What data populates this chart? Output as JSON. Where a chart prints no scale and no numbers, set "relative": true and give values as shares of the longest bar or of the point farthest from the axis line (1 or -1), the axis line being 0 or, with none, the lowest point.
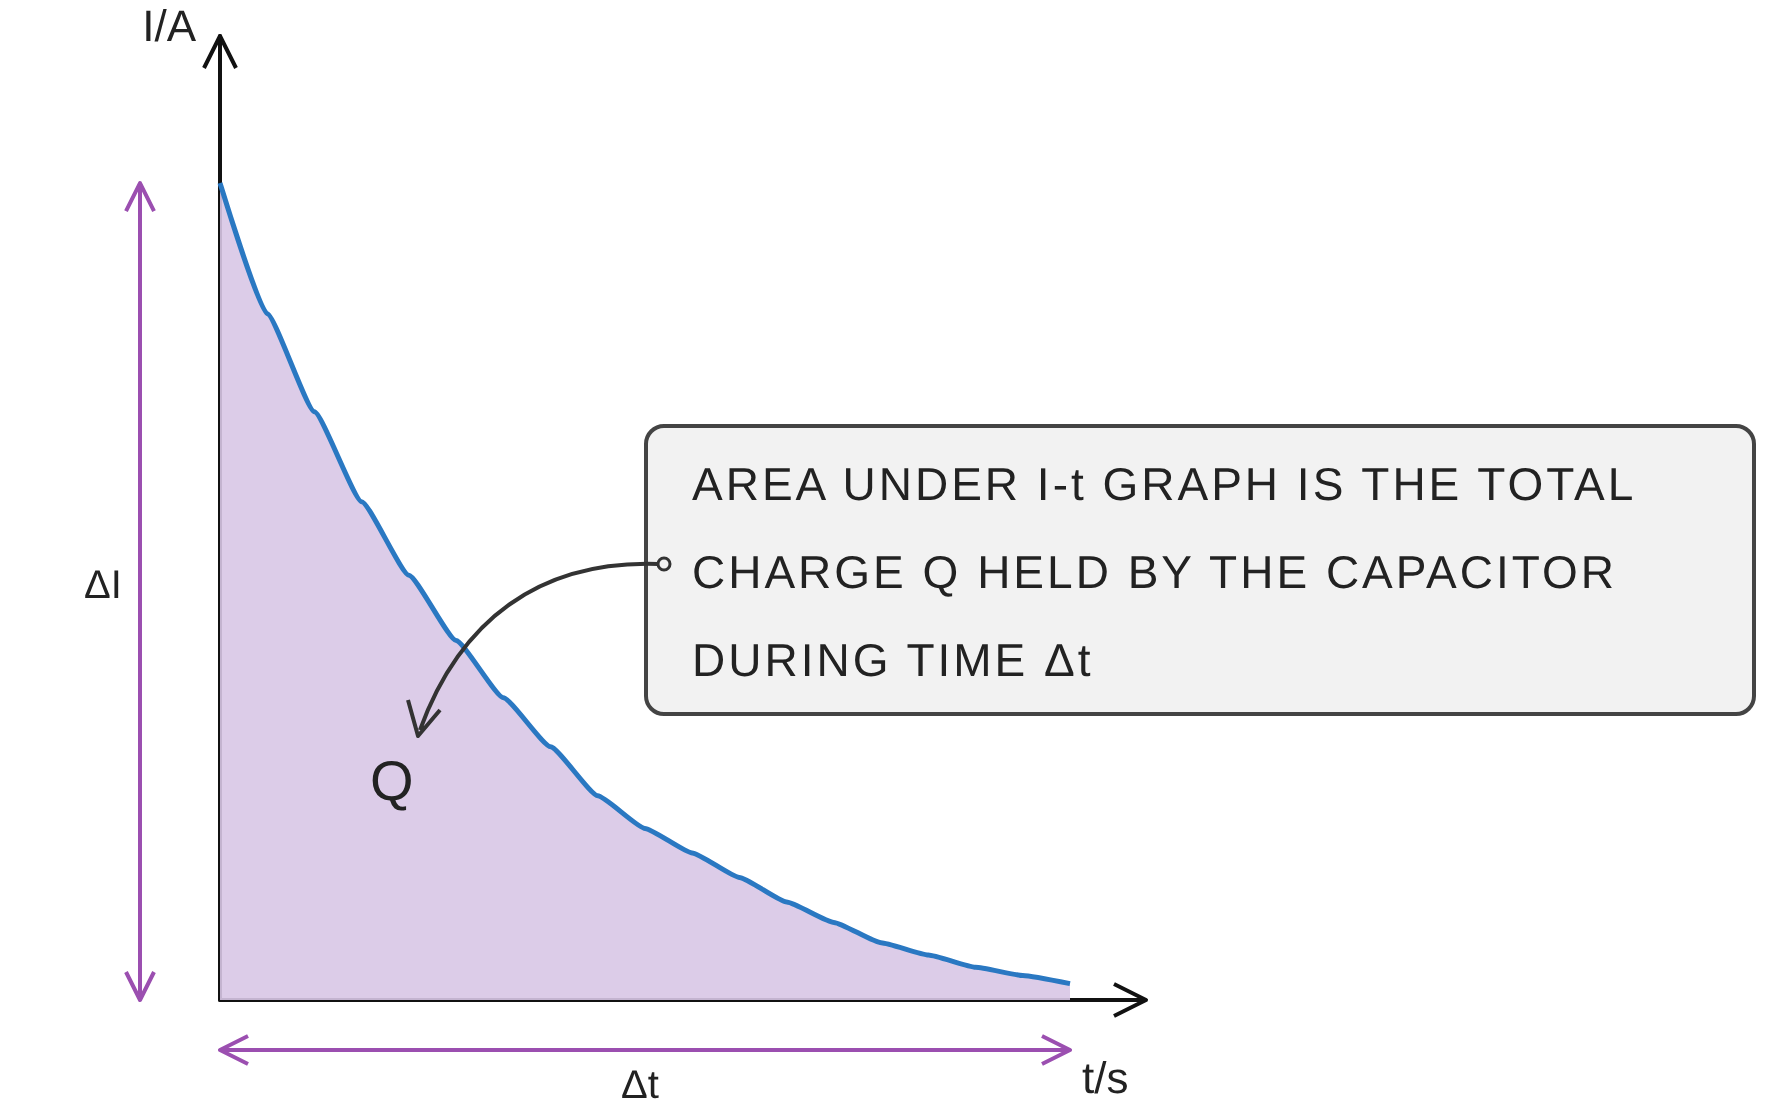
{
  "chart_data": {
    "type": "area",
    "relative": true,
    "xlabel": "t/s",
    "ylabel": "I/A",
    "categories": [
      null,
      null,
      null,
      null,
      null,
      null,
      null,
      null,
      null,
      null,
      null,
      null,
      null,
      null,
      null,
      null,
      null,
      null,
      null
    ],
    "series": [
      {
        "color": "#2a78c2",
        "values": [
          1.0,
          0.84,
          0.72,
          0.61,
          0.52,
          0.44,
          0.37,
          0.31,
          0.25,
          0.21,
          0.18,
          0.15,
          0.12,
          0.095,
          0.07,
          0.055,
          0.04,
          0.03,
          0.02
        ]
      }
    ],
    "annotations": [
      "AREA UNDER I-t GRAPH IS THE TOTAL CHARGE Q HELD BY THE CAPACITOR DURING TIME Δt",
      "Q",
      "ΔI",
      "Δt"
    ],
    "marker": "none",
    "grid": false,
    "line_style": "solid"
  }
}
